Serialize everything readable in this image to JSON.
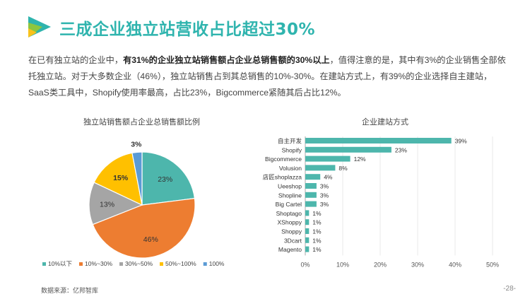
{
  "header": {
    "title": "三成企业独立站营收占比超过30%"
  },
  "intro": {
    "p1": "在已有独立站的企业中，",
    "p1_bold": "有31%的企业独立站销售额占企业总销售额的30%以上",
    "p1_rest": "，值得注意的是，其中有3%的企业销售全部依托独立站。对于大多数企业（46%），独立站销售占到其总销售的10%-30%。在建站方式上，有39%的企业选择自主建站，SaaS类工具中，Shopify使用率最高，占比23%，Bigcommerce紧随其后占比12%。"
  },
  "footer": {
    "source": "数据来源：亿邦智库",
    "page": "-28-"
  },
  "colors": {
    "teal": "#4db6ac",
    "orange": "#ed7d31",
    "gray": "#a5a5a5",
    "yellow": "#ffc000",
    "blue": "#5b9bd5",
    "accent": "#2fb4ae"
  },
  "chart_data": [
    {
      "type": "pie",
      "title": "独立站销售额占企业总销售额比例",
      "categories": [
        "10%以下",
        "10%~30%",
        "30%~50%",
        "50%~100%",
        "100%"
      ],
      "values": [
        23,
        46,
        13,
        15,
        3
      ],
      "labels": [
        "23%",
        "46%",
        "13%",
        "15%",
        "3%"
      ],
      "colors": [
        "#4db6ac",
        "#ed7d31",
        "#a5a5a5",
        "#ffc000",
        "#5b9bd5"
      ],
      "legend": "bottom"
    },
    {
      "type": "bar",
      "orientation": "horizontal",
      "title": "企业建站方式",
      "categories": [
        "自主开发",
        "Shopify",
        "Bigcommerce",
        "Volusion",
        "店匠shoplazza",
        "Ueeshop",
        "Shopline",
        "Big Cartel",
        "Shoptago",
        "XShoppy",
        "Shoppy",
        "3Dcart",
        "Magento"
      ],
      "values": [
        39,
        23,
        12,
        8,
        4,
        3,
        3,
        3,
        1,
        1,
        1,
        1,
        1
      ],
      "labels": [
        "39%",
        "23%",
        "12%",
        "8%",
        "4%",
        "3%",
        "3%",
        "3%",
        "1%",
        "1%",
        "1%",
        "1%",
        "1%"
      ],
      "xlim": [
        0,
        50
      ],
      "xticks": [
        "0%",
        "10%",
        "20%",
        "30%",
        "40%",
        "50%"
      ],
      "xtick_values": [
        0,
        10,
        20,
        30,
        40,
        50
      ],
      "color": "#4db6ac",
      "grid": true
    }
  ]
}
